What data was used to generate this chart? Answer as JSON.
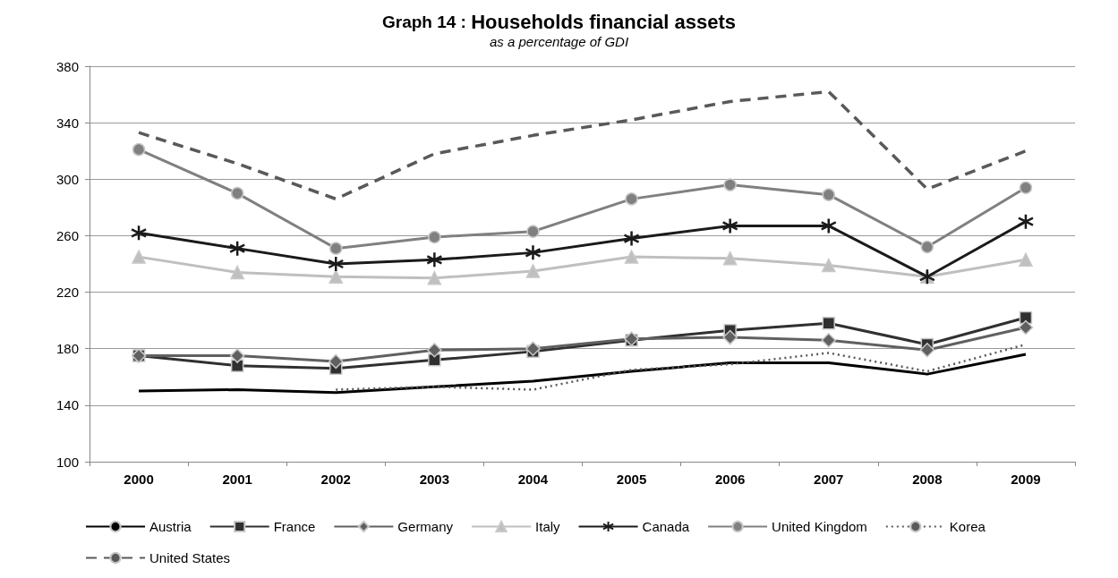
{
  "chart_data": {
    "type": "line",
    "title": "Graph 14 : Households financial assets",
    "subtitle": "as a percentage of GDI",
    "categories": [
      "2000",
      "2001",
      "2002",
      "2003",
      "2004",
      "2005",
      "2006",
      "2007",
      "2008",
      "2009"
    ],
    "ylim": [
      100,
      380
    ],
    "yticks": [
      100,
      140,
      180,
      220,
      260,
      300,
      340,
      380
    ],
    "grid": "y",
    "legend": "bottom",
    "series": [
      {
        "name": "Austria",
        "color": "#000000",
        "marker": "none",
        "line_style": "solid",
        "values": [
          150,
          151,
          149,
          153,
          157,
          164,
          170,
          170,
          162,
          176
        ]
      },
      {
        "name": "France",
        "color": "#303030",
        "marker": "square",
        "line_style": "solid",
        "values": [
          175,
          168,
          166,
          172,
          178,
          186,
          193,
          198,
          183,
          202
        ]
      },
      {
        "name": "Germany",
        "color": "#606060",
        "marker": "diamond",
        "line_style": "solid",
        "values": [
          175,
          175,
          171,
          179,
          180,
          187,
          188,
          186,
          179,
          195
        ]
      },
      {
        "name": "Italy",
        "color": "#bfbfbf",
        "marker": "triangle",
        "line_style": "solid",
        "values": [
          245,
          234,
          231,
          230,
          235,
          245,
          244,
          239,
          231,
          243
        ]
      },
      {
        "name": "Canada",
        "color": "#1a1a1a",
        "marker": "cross",
        "line_style": "solid",
        "values": [
          262,
          251,
          240,
          243,
          248,
          258,
          267,
          267,
          231,
          270
        ]
      },
      {
        "name": "United Kingdom",
        "color": "#808080",
        "marker": "circle",
        "line_style": "solid",
        "values": [
          321,
          290,
          251,
          259,
          263,
          286,
          296,
          289,
          252,
          294
        ]
      },
      {
        "name": "Korea",
        "color": "#595959",
        "marker": "none",
        "line_style": "dotted",
        "values": [
          null,
          null,
          151,
          153,
          151,
          165,
          169,
          177,
          164,
          183
        ]
      },
      {
        "name": "United States",
        "color": "#595959",
        "marker": "none",
        "line_style": "dashed",
        "values": [
          333,
          311,
          286,
          318,
          331,
          342,
          355,
          362,
          293,
          320
        ]
      }
    ]
  }
}
